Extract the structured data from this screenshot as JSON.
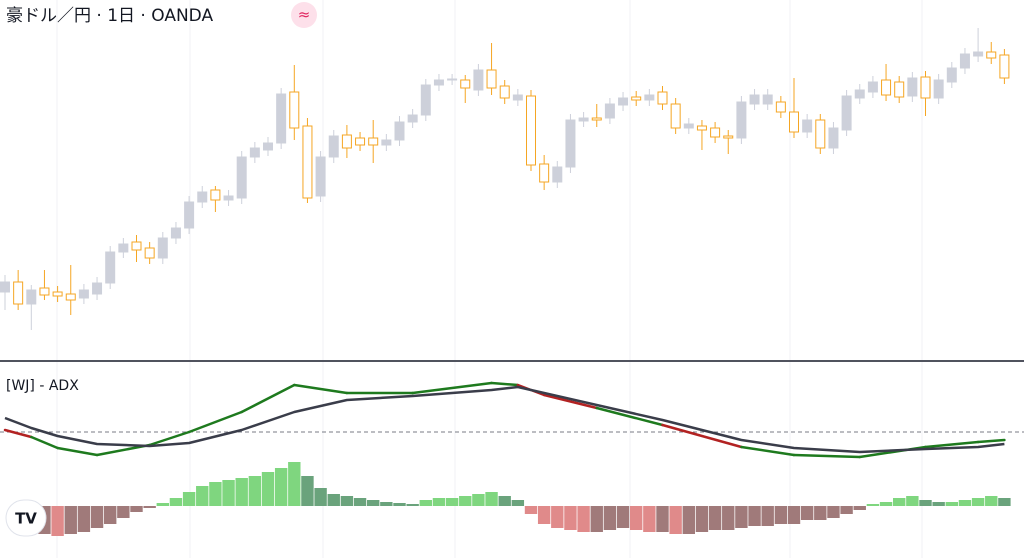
{
  "chart_data": [
    {
      "type": "candlestick",
      "title": "豪ドル／円 · 1日 · OANDA",
      "badge": "≈",
      "ylim": [
        0,
        340
      ],
      "up_color": "#cdd0da",
      "down_color": "#f5a623",
      "ohlc": [
        [
          48,
          65,
          30,
          58
        ],
        [
          58,
          70,
          30,
          36
        ],
        [
          36,
          55,
          10,
          50
        ],
        [
          52,
          70,
          40,
          45
        ],
        [
          48,
          54,
          38,
          44
        ],
        [
          46,
          75,
          25,
          40
        ],
        [
          42,
          56,
          36,
          50
        ],
        [
          46,
          63,
          40,
          57
        ],
        [
          57,
          94,
          51,
          88
        ],
        [
          88,
          102,
          82,
          96
        ],
        [
          98,
          105,
          78,
          90
        ],
        [
          92,
          98,
          76,
          82
        ],
        [
          82,
          108,
          76,
          102
        ],
        [
          102,
          118,
          96,
          112
        ],
        [
          112,
          144,
          106,
          138
        ],
        [
          138,
          154,
          132,
          148
        ],
        [
          150,
          154,
          128,
          140
        ],
        [
          140,
          150,
          134,
          144
        ],
        [
          142,
          189,
          136,
          183
        ],
        [
          183,
          198,
          177,
          192
        ],
        [
          190,
          203,
          184,
          197
        ],
        [
          197,
          252,
          191,
          246
        ],
        [
          248,
          275,
          200,
          212
        ],
        [
          214,
          222,
          137,
          142
        ],
        [
          144,
          189,
          138,
          183
        ],
        [
          183,
          210,
          177,
          204
        ],
        [
          205,
          215,
          182,
          192
        ],
        [
          202,
          208,
          189,
          195
        ],
        [
          202,
          220,
          177,
          195
        ],
        [
          195,
          206,
          189,
          200
        ],
        [
          200,
          224,
          194,
          218
        ],
        [
          218,
          231,
          212,
          225
        ],
        [
          225,
          261,
          219,
          255
        ],
        [
          255,
          266,
          249,
          260
        ],
        [
          260,
          266,
          255,
          261
        ],
        [
          260,
          265,
          237,
          252
        ],
        [
          250,
          276,
          244,
          270
        ],
        [
          270,
          297,
          245,
          252
        ],
        [
          254,
          260,
          236,
          242
        ],
        [
          240,
          251,
          234,
          245
        ],
        [
          244,
          250,
          169,
          175
        ],
        [
          176,
          185,
          150,
          158
        ],
        [
          158,
          179,
          152,
          173
        ],
        [
          173,
          226,
          167,
          220
        ],
        [
          219,
          228,
          213,
          222
        ],
        [
          222,
          236,
          213,
          220
        ],
        [
          222,
          242,
          216,
          236
        ],
        [
          235,
          248,
          229,
          242
        ],
        [
          243,
          249,
          234,
          240
        ],
        [
          240,
          251,
          234,
          245
        ],
        [
          248,
          254,
          230,
          236
        ],
        [
          236,
          242,
          206,
          212
        ],
        [
          212,
          222,
          206,
          216
        ],
        [
          214,
          220,
          190,
          210
        ],
        [
          212,
          218,
          197,
          203
        ],
        [
          204,
          210,
          186,
          202
        ],
        [
          202,
          244,
          196,
          238
        ],
        [
          236,
          251,
          230,
          245
        ],
        [
          236,
          251,
          230,
          245
        ],
        [
          238,
          244,
          222,
          228
        ],
        [
          228,
          262,
          202,
          208
        ],
        [
          208,
          226,
          202,
          220
        ],
        [
          220,
          226,
          186,
          192
        ],
        [
          192,
          218,
          186,
          212
        ],
        [
          210,
          250,
          204,
          244
        ],
        [
          242,
          256,
          236,
          250
        ],
        [
          248,
          264,
          242,
          258
        ],
        [
          260,
          276,
          239,
          245
        ],
        [
          258,
          264,
          237,
          243
        ],
        [
          244,
          268,
          238,
          262
        ],
        [
          263,
          269,
          224,
          242
        ],
        [
          242,
          266,
          236,
          260
        ],
        [
          258,
          278,
          252,
          272
        ],
        [
          272,
          292,
          266,
          286
        ],
        [
          284,
          312,
          278,
          288
        ],
        [
          288,
          298,
          276,
          282
        ],
        [
          285,
          291,
          256,
          262
        ]
      ]
    },
    {
      "type": "adx",
      "title": "[WJ] - ADX",
      "ylim": [
        -40,
        150
      ],
      "reference_line": 74,
      "series": [
        {
          "color": "#1e7a1e",
          "x": [
            0,
            2,
            4,
            7,
            11,
            14,
            18,
            22,
            26,
            31,
            37,
            39,
            41,
            45,
            50,
            56,
            60,
            65,
            70,
            74,
            76
          ],
          "values": [
            76,
            69,
            58,
            51,
            61,
            74,
            94,
            121,
            113,
            113,
            123,
            121,
            111,
            98,
            81,
            59,
            51,
            49,
            59,
            64,
            66
          ],
          "segment_colors": [
            "#b22222",
            "#1e7a1e",
            "#1e7a1e",
            "#1e7a1e",
            "#1e7a1e",
            "#1e7a1e",
            "#1e7a1e",
            "#1e7a1e",
            "#1e7a1e",
            "#1e7a1e",
            "#1e7a1e",
            "#b22222",
            "#b22222",
            "#1e7a1e",
            "#b22222",
            "#1e7a1e",
            "#1e7a1e",
            "#1e7a1e",
            "#1e7a1e",
            "#1e7a1e",
            "#1e7a1e"
          ]
        },
        {
          "color": "#3a3d4a",
          "x": [
            0,
            2,
            4,
            7,
            11,
            14,
            18,
            22,
            26,
            31,
            37,
            39,
            41,
            45,
            50,
            56,
            60,
            65,
            70,
            74,
            76
          ],
          "values": [
            88,
            78,
            70,
            62,
            60,
            63,
            76,
            94,
            106,
            110,
            116,
            119,
            113,
            101,
            86,
            66,
            58,
            54,
            57,
            59,
            62
          ]
        }
      ],
      "histogram": {
        "rising_positive": "#7fd67f",
        "falling_positive": "#6aa37c",
        "falling_negative": "#e08a8a",
        "rising_negative": "#a07a7a",
        "values": [
          null,
          null,
          null,
          -28,
          -30,
          -28,
          -26,
          -22,
          -18,
          -12,
          -6,
          -2,
          3,
          8,
          14,
          20,
          24,
          26,
          28,
          30,
          34,
          38,
          44,
          30,
          18,
          12,
          10,
          8,
          6,
          4,
          3,
          2,
          6,
          8,
          8,
          10,
          12,
          14,
          10,
          6,
          -8,
          -18,
          -22,
          -24,
          -26,
          -26,
          -24,
          -22,
          -24,
          -26,
          -26,
          -28,
          -28,
          -26,
          -24,
          -24,
          -22,
          -20,
          -20,
          -18,
          -18,
          -14,
          -14,
          -12,
          -8,
          -4,
          2,
          4,
          8,
          10,
          6,
          4,
          4,
          6,
          8,
          10,
          8
        ]
      }
    }
  ]
}
